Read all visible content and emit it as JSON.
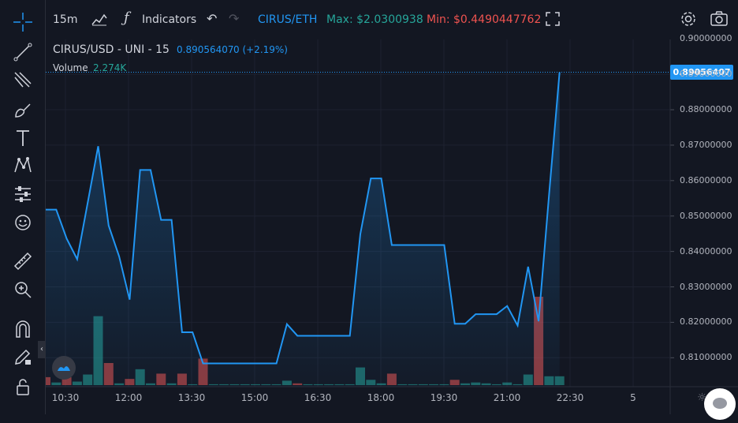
{
  "toolbar": {
    "interval": "15m",
    "indicators_label": "Indicators",
    "pair": "CIRUS/ETH",
    "max_label": "Max: $2.0300938",
    "min_label": "Min: $0.4490447762"
  },
  "legend": {
    "symbol": "CIRUS/USD - UNI - 15",
    "price": "0.89056407",
    "change": "0 (+2.19%)",
    "volume_label": "Volume",
    "volume_value": "2.274K"
  },
  "price_tag": "0.89056407",
  "icons": [
    "crosshair-icon",
    "trend-line-icon",
    "fib-icon",
    "brush-icon",
    "text-icon",
    "pattern-icon",
    "forecast-icon",
    "emoji-icon",
    "ruler-icon",
    "zoom-in-icon",
    "magnet-icon",
    "pencil-lock-icon",
    "lock-icon",
    "chart-type-icon",
    "camera-icon",
    "settings-icon",
    "fullscreen-icon",
    "undo-icon",
    "redo-icon",
    "chat-icon"
  ],
  "colors": {
    "line": "#2196f3",
    "up": "#26a69a",
    "down": "#ef5350",
    "background": "#131722"
  },
  "chart_data": {
    "type": "line",
    "x_tick_labels": [
      "10:30",
      "12:00",
      "13:30",
      "15:00",
      "16:30",
      "18:00",
      "19:30",
      "21:00",
      "22:30",
      "5"
    ],
    "y_tick_labels": [
      "0.90000000",
      "0.89000000",
      "0.88000000",
      "0.87000000",
      "0.86000000",
      "0.85000000",
      "0.84000000",
      "0.83000000",
      "0.82000000",
      "0.81000000"
    ],
    "ylim": [
      0.8045,
      0.9005
    ],
    "series": [
      {
        "values": [
          0.8518,
          0.8518,
          0.8436,
          0.8378,
          0.8537,
          0.8697,
          0.8473,
          0.8386,
          0.8264,
          0.863,
          0.863,
          0.8489,
          0.8489,
          0.8172,
          0.8172,
          0.8084,
          0.8084,
          0.8084,
          0.8084,
          0.8084,
          0.8084,
          0.8084,
          0.8084,
          0.8195,
          0.8162,
          0.8162,
          0.8162,
          0.8162,
          0.8162,
          0.8162,
          0.8449,
          0.8606,
          0.8606,
          0.8418,
          0.8418,
          0.8418,
          0.8418,
          0.8418,
          0.8418,
          0.8196,
          0.8196,
          0.8223,
          0.8223,
          0.8223,
          0.8246,
          0.8191,
          0.8357,
          0.8203,
          0.8561,
          0.8906
        ]
      }
    ],
    "volume": [
      {
        "v": 0.09,
        "d": "down"
      },
      {
        "v": 0.03,
        "d": "up"
      },
      {
        "v": 0.09,
        "d": "down"
      },
      {
        "v": 0.04,
        "d": "up"
      },
      {
        "v": 0.12,
        "d": "up"
      },
      {
        "v": 0.78,
        "d": "up"
      },
      {
        "v": 0.25,
        "d": "down"
      },
      {
        "v": 0.02,
        "d": "up"
      },
      {
        "v": 0.07,
        "d": "down"
      },
      {
        "v": 0.18,
        "d": "up"
      },
      {
        "v": 0.02,
        "d": "up"
      },
      {
        "v": 0.13,
        "d": "down"
      },
      {
        "v": 0.02,
        "d": "up"
      },
      {
        "v": 0.13,
        "d": "down"
      },
      {
        "v": 0.01,
        "d": "up"
      },
      {
        "v": 0.3,
        "d": "down"
      },
      {
        "v": 0.01,
        "d": "up"
      },
      {
        "v": 0.01,
        "d": "up"
      },
      {
        "v": 0.01,
        "d": "up"
      },
      {
        "v": 0.01,
        "d": "up"
      },
      {
        "v": 0.01,
        "d": "up"
      },
      {
        "v": 0.01,
        "d": "up"
      },
      {
        "v": 0.01,
        "d": "up"
      },
      {
        "v": 0.05,
        "d": "up"
      },
      {
        "v": 0.02,
        "d": "down"
      },
      {
        "v": 0.01,
        "d": "up"
      },
      {
        "v": 0.01,
        "d": "up"
      },
      {
        "v": 0.01,
        "d": "up"
      },
      {
        "v": 0.01,
        "d": "up"
      },
      {
        "v": 0.01,
        "d": "up"
      },
      {
        "v": 0.2,
        "d": "up"
      },
      {
        "v": 0.06,
        "d": "up"
      },
      {
        "v": 0.02,
        "d": "up"
      },
      {
        "v": 0.13,
        "d": "down"
      },
      {
        "v": 0.01,
        "d": "up"
      },
      {
        "v": 0.01,
        "d": "up"
      },
      {
        "v": 0.01,
        "d": "up"
      },
      {
        "v": 0.01,
        "d": "up"
      },
      {
        "v": 0.01,
        "d": "up"
      },
      {
        "v": 0.06,
        "d": "down"
      },
      {
        "v": 0.02,
        "d": "up"
      },
      {
        "v": 0.03,
        "d": "up"
      },
      {
        "v": 0.02,
        "d": "up"
      },
      {
        "v": 0.01,
        "d": "up"
      },
      {
        "v": 0.03,
        "d": "up"
      },
      {
        "v": 0.01,
        "d": "up"
      },
      {
        "v": 0.12,
        "d": "up"
      },
      {
        "v": 1.0,
        "d": "down"
      },
      {
        "v": 0.1,
        "d": "up"
      },
      {
        "v": 0.1,
        "d": "up"
      }
    ]
  }
}
